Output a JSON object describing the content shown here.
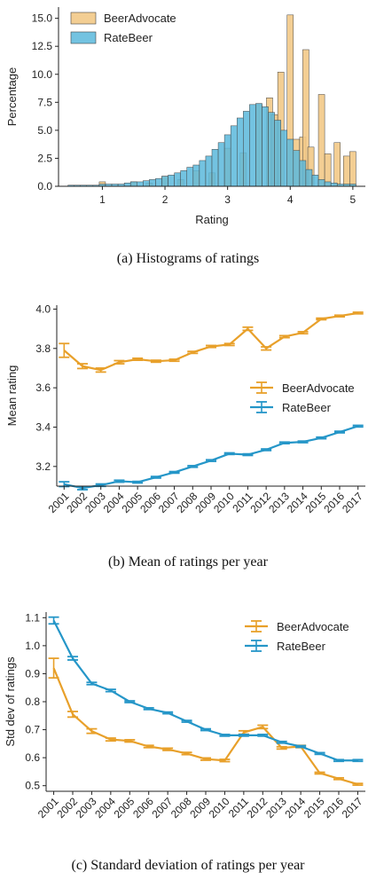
{
  "colors": {
    "beeradvocate": "#e8a02a",
    "ratebeer": "#2596c8",
    "hist_ba_fill": "#f2c987",
    "hist_rb_fill": "#5bb8dc"
  },
  "captions": [
    "(a)  Histograms of ratings",
    "(b)  Mean of ratings per year",
    "(c)  Standard deviation of ratings per year"
  ],
  "chart_data": [
    {
      "type": "bar",
      "xlabel": "Rating",
      "ylabel": "Percentage",
      "xlim": [
        0.3,
        5.2
      ],
      "ylim": [
        0,
        16
      ],
      "xticks": [
        "1",
        "2",
        "3",
        "4",
        "5"
      ],
      "yticks": [
        "0.0",
        "2.5",
        "5.0",
        "7.5",
        "10.0",
        "12.5",
        "15.0"
      ],
      "legend": [
        "BeerAdvocate",
        "RateBeer"
      ],
      "legend_position": "top-left",
      "bin_width": 0.1,
      "series": [
        {
          "name": "BeerAdvocate",
          "bins": [
            {
              "x": 1.0,
              "y": 0.4
            },
            {
              "x": 1.5,
              "y": 0.4
            },
            {
              "x": 1.75,
              "y": 0.3
            },
            {
              "x": 2.0,
              "y": 0.9
            },
            {
              "x": 2.25,
              "y": 0.6
            },
            {
              "x": 2.5,
              "y": 1.4
            },
            {
              "x": 2.75,
              "y": 1.2
            },
            {
              "x": 3.0,
              "y": 3.4
            },
            {
              "x": 3.25,
              "y": 3.0
            },
            {
              "x": 3.5,
              "y": 7.3
            },
            {
              "x": 3.67,
              "y": 7.9
            },
            {
              "x": 3.75,
              "y": 6.4
            },
            {
              "x": 3.85,
              "y": 10.2
            },
            {
              "x": 4.0,
              "y": 15.3
            },
            {
              "x": 4.1,
              "y": 4.2
            },
            {
              "x": 4.2,
              "y": 4.4
            },
            {
              "x": 4.25,
              "y": 12.2
            },
            {
              "x": 4.33,
              "y": 3.5
            },
            {
              "x": 4.5,
              "y": 8.2
            },
            {
              "x": 4.6,
              "y": 2.9
            },
            {
              "x": 4.75,
              "y": 3.9
            },
            {
              "x": 4.9,
              "y": 2.7
            },
            {
              "x": 5.0,
              "y": 3.1
            }
          ]
        },
        {
          "name": "RateBeer",
          "bins": [
            {
              "x": 0.5,
              "y": 0.1
            },
            {
              "x": 0.6,
              "y": 0.1
            },
            {
              "x": 0.7,
              "y": 0.1
            },
            {
              "x": 0.8,
              "y": 0.1
            },
            {
              "x": 0.9,
              "y": 0.1
            },
            {
              "x": 1.0,
              "y": 0.2
            },
            {
              "x": 1.1,
              "y": 0.2
            },
            {
              "x": 1.2,
              "y": 0.2
            },
            {
              "x": 1.3,
              "y": 0.2
            },
            {
              "x": 1.4,
              "y": 0.3
            },
            {
              "x": 1.5,
              "y": 0.4
            },
            {
              "x": 1.6,
              "y": 0.4
            },
            {
              "x": 1.7,
              "y": 0.5
            },
            {
              "x": 1.8,
              "y": 0.6
            },
            {
              "x": 1.9,
              "y": 0.7
            },
            {
              "x": 2.0,
              "y": 0.9
            },
            {
              "x": 2.1,
              "y": 1.0
            },
            {
              "x": 2.2,
              "y": 1.2
            },
            {
              "x": 2.3,
              "y": 1.4
            },
            {
              "x": 2.4,
              "y": 1.7
            },
            {
              "x": 2.5,
              "y": 1.9
            },
            {
              "x": 2.6,
              "y": 2.3
            },
            {
              "x": 2.7,
              "y": 2.7
            },
            {
              "x": 2.8,
              "y": 3.3
            },
            {
              "x": 2.9,
              "y": 3.9
            },
            {
              "x": 3.0,
              "y": 4.6
            },
            {
              "x": 3.1,
              "y": 5.4
            },
            {
              "x": 3.2,
              "y": 6.1
            },
            {
              "x": 3.3,
              "y": 6.7
            },
            {
              "x": 3.4,
              "y": 7.3
            },
            {
              "x": 3.5,
              "y": 7.4
            },
            {
              "x": 3.6,
              "y": 7.1
            },
            {
              "x": 3.7,
              "y": 6.6
            },
            {
              "x": 3.8,
              "y": 5.9
            },
            {
              "x": 3.9,
              "y": 5.0
            },
            {
              "x": 4.0,
              "y": 4.2
            },
            {
              "x": 4.1,
              "y": 3.2
            },
            {
              "x": 4.2,
              "y": 2.3
            },
            {
              "x": 4.3,
              "y": 1.5
            },
            {
              "x": 4.4,
              "y": 1.0
            },
            {
              "x": 4.5,
              "y": 0.6
            },
            {
              "x": 4.6,
              "y": 0.4
            },
            {
              "x": 4.7,
              "y": 0.3
            },
            {
              "x": 4.8,
              "y": 0.2
            },
            {
              "x": 4.9,
              "y": 0.2
            },
            {
              "x": 5.0,
              "y": 0.2
            }
          ]
        }
      ]
    },
    {
      "type": "line",
      "ylabel": "Mean rating",
      "ylim": [
        3.1,
        4.02
      ],
      "yticks": [
        "3.2",
        "3.4",
        "3.6",
        "3.8",
        "4.0"
      ],
      "categories": [
        "2001",
        "2002",
        "2003",
        "2004",
        "2005",
        "2006",
        "2007",
        "2008",
        "2009",
        "2010",
        "2011",
        "2012",
        "2013",
        "2014",
        "2015",
        "2016",
        "2017"
      ],
      "legend": [
        "BeerAdvocate",
        "RateBeer"
      ],
      "legend_position": "center-right",
      "series": [
        {
          "name": "BeerAdvocate",
          "values": [
            3.79,
            3.71,
            3.69,
            3.73,
            3.745,
            3.735,
            3.74,
            3.78,
            3.81,
            3.82,
            3.9,
            3.8,
            3.86,
            3.88,
            3.95,
            3.965,
            3.98
          ],
          "errors": [
            0.035,
            0.012,
            0.01,
            0.008,
            0.005,
            0.005,
            0.005,
            0.005,
            0.005,
            0.005,
            0.008,
            0.008,
            0.005,
            0.005,
            0.004,
            0.004,
            0.004
          ]
        },
        {
          "name": "RateBeer",
          "values": [
            3.11,
            3.09,
            3.105,
            3.125,
            3.12,
            3.145,
            3.17,
            3.2,
            3.23,
            3.265,
            3.26,
            3.285,
            3.32,
            3.325,
            3.345,
            3.375,
            3.405
          ],
          "errors": [
            0.012,
            0.008,
            0.006,
            0.005,
            0.004,
            0.004,
            0.004,
            0.004,
            0.004,
            0.004,
            0.004,
            0.004,
            0.004,
            0.004,
            0.004,
            0.004,
            0.004
          ]
        }
      ]
    },
    {
      "type": "line",
      "ylabel": "Std dev of ratings",
      "ylim": [
        0.48,
        1.12
      ],
      "yticks": [
        "0.5",
        "0.6",
        "0.7",
        "0.8",
        "0.9",
        "1.0",
        "1.1"
      ],
      "categories": [
        "2001",
        "2002",
        "2003",
        "2004",
        "2005",
        "2006",
        "2007",
        "2008",
        "2009",
        "2010",
        "2011",
        "2012",
        "2013",
        "2014",
        "2015",
        "2016",
        "2017"
      ],
      "legend": [
        "BeerAdvocate",
        "RateBeer"
      ],
      "legend_position": "top-right",
      "series": [
        {
          "name": "BeerAdvocate",
          "values": [
            0.92,
            0.755,
            0.695,
            0.665,
            0.66,
            0.64,
            0.63,
            0.615,
            0.595,
            0.59,
            0.69,
            0.71,
            0.635,
            0.64,
            0.545,
            0.525,
            0.505
          ],
          "errors": [
            0.035,
            0.01,
            0.008,
            0.005,
            0.004,
            0.004,
            0.004,
            0.004,
            0.004,
            0.004,
            0.006,
            0.006,
            0.004,
            0.004,
            0.003,
            0.003,
            0.003
          ]
        },
        {
          "name": "RateBeer",
          "values": [
            1.09,
            0.955,
            0.865,
            0.84,
            0.8,
            0.775,
            0.76,
            0.73,
            0.7,
            0.68,
            0.68,
            0.68,
            0.655,
            0.64,
            0.615,
            0.59,
            0.59
          ],
          "errors": [
            0.012,
            0.006,
            0.004,
            0.004,
            0.003,
            0.003,
            0.003,
            0.003,
            0.003,
            0.003,
            0.003,
            0.003,
            0.003,
            0.003,
            0.003,
            0.003,
            0.003
          ]
        }
      ]
    }
  ]
}
